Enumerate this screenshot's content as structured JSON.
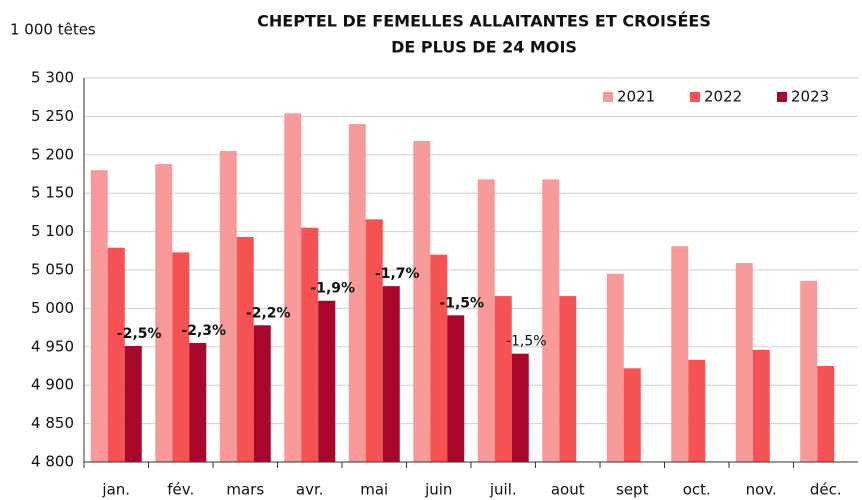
{
  "chart_data": {
    "type": "bar",
    "title": [
      "CHEPTEL DE FEMELLES ALLAITANTES ET CROISÉES",
      "DE PLUS DE 24 MOIS"
    ],
    "y_label": "1 000 têtes",
    "categories": [
      "jan.",
      "fév.",
      "mars",
      "avr.",
      "mai",
      "juin",
      "juil.",
      "aout",
      "sept",
      "oct.",
      "nov.",
      "déc."
    ],
    "series": [
      {
        "name": "2021",
        "color": "#f99a9a",
        "values": [
          5180,
          5188,
          5205,
          5254,
          5240,
          5218,
          5168,
          5168,
          5045,
          5081,
          5059,
          5036
        ]
      },
      {
        "name": "2022",
        "color": "#f55353",
        "values": [
          5079,
          5073,
          5093,
          5105,
          5116,
          5070,
          5016,
          5016,
          4922,
          4933,
          4946,
          4925
        ]
      },
      {
        "name": "2023",
        "color": "#a8062a",
        "values": [
          4951,
          4955,
          4978,
          5010,
          5029,
          4991,
          4941,
          null,
          null,
          null,
          null,
          null
        ]
      }
    ],
    "annotations": [
      {
        "category": "jan.",
        "text": "-2,5%",
        "bold": true
      },
      {
        "category": "fév.",
        "text": "-2,3%",
        "bold": true
      },
      {
        "category": "mars",
        "text": "-2,2%",
        "bold": true
      },
      {
        "category": "avr.",
        "text": "-1,9%",
        "bold": true
      },
      {
        "category": "mai",
        "text": "-1,7%",
        "bold": true
      },
      {
        "category": "juin",
        "text": "-1,5%",
        "bold": true
      },
      {
        "category": "juil.",
        "text": "-1,5%",
        "bold": false
      }
    ],
    "ylim": [
      4800,
      5300
    ],
    "yticks": [
      {
        "value": 4800,
        "label": "4 800"
      },
      {
        "value": 4850,
        "label": "4 850"
      },
      {
        "value": 4900,
        "label": "4 900"
      },
      {
        "value": 4950,
        "label": "4 950"
      },
      {
        "value": 5000,
        "label": "5 000"
      },
      {
        "value": 5050,
        "label": "5 050"
      },
      {
        "value": 5100,
        "label": "5 100"
      },
      {
        "value": 5150,
        "label": "5 150"
      },
      {
        "value": 5200,
        "label": "5 200"
      },
      {
        "value": 5250,
        "label": "5 250"
      },
      {
        "value": 5300,
        "label": "5 300"
      }
    ],
    "grid": true,
    "legend": "top-right"
  }
}
